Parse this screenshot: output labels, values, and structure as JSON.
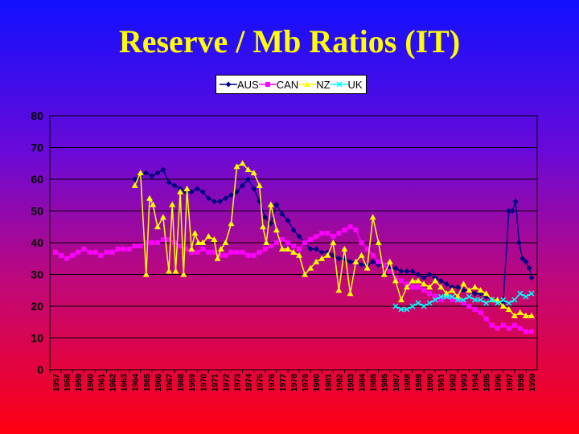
{
  "title": "Reserve / Mb Ratios (IT)",
  "chart_data": {
    "type": "line",
    "title": "Reserve / Mb Ratios (IT)",
    "xlabel": "",
    "ylabel": "",
    "ylim": [
      0,
      80
    ],
    "yticks": [
      "0",
      "10",
      "20",
      "30",
      "40",
      "50",
      "60",
      "70",
      "80"
    ],
    "grid": true,
    "legend_position": "top",
    "xlim": [
      1957,
      1999
    ],
    "xticks": [
      "1957",
      "1958",
      "1959",
      "1960",
      "1961",
      "1962",
      "1963",
      "1964",
      "1965",
      "1966",
      "1967",
      "1968",
      "1969",
      "1970",
      "1971",
      "1972",
      "1973",
      "1974",
      "1975",
      "1976",
      "1977",
      "1978",
      "1979",
      "1980",
      "1981",
      "1982",
      "1983",
      "1984",
      "1985",
      "1986",
      "1987",
      "1988",
      "1989",
      "1990",
      "1991",
      "1992",
      "1993",
      "1994",
      "1995",
      "1996",
      "1997",
      "1998",
      "1999"
    ],
    "series": [
      {
        "name": "AUS",
        "color": "#000080",
        "marker": "diamond",
        "x": [
          1964.0,
          1964.5,
          1965.0,
          1965.5,
          1966.0,
          1966.5,
          1967.0,
          1967.5,
          1968.0,
          1968.5,
          1969.0,
          1969.5,
          1970.0,
          1970.5,
          1971.0,
          1971.5,
          1972.0,
          1972.5,
          1973.0,
          1973.5,
          1974.0,
          1974.5,
          1975.0,
          1975.5,
          1976.0,
          1976.5,
          1977.0,
          1977.5,
          1978.0,
          1978.5,
          1979.0,
          1979.5,
          1980.0,
          1980.5,
          1981.0,
          1981.5,
          1982.0,
          1982.5,
          1983.0,
          1983.5,
          1984.0,
          1984.5,
          1985.0,
          1985.5,
          1986.0,
          1986.5,
          1987.0,
          1987.5,
          1988.0,
          1988.5,
          1989.0,
          1989.5,
          1990.0,
          1990.5,
          1991.0,
          1991.5,
          1992.0,
          1992.5,
          1993.0,
          1993.5,
          1994.0,
          1994.5,
          1995.0,
          1995.5,
          1996.0,
          1996.5,
          1997.0,
          1997.3,
          1997.6,
          1997.9,
          1998.2,
          1998.5,
          1998.8,
          1999.0
        ],
        "y": [
          60,
          61,
          62,
          61,
          62,
          63,
          59,
          58,
          57,
          56,
          56,
          57,
          56,
          54,
          53,
          53,
          54,
          55,
          56,
          58,
          60,
          57,
          53,
          48,
          46,
          52,
          49,
          47,
          44,
          42,
          40,
          38,
          38,
          37,
          37,
          36,
          35,
          35,
          34,
          34,
          33,
          33,
          34,
          33,
          33,
          32,
          32,
          31,
          31,
          31,
          30,
          29,
          30,
          29,
          28,
          27,
          26,
          26,
          25,
          25,
          24,
          24,
          23,
          22,
          22,
          21,
          50,
          50,
          53,
          40,
          35,
          34,
          32,
          29
        ]
      },
      {
        "name": "CAN",
        "color": "#ff00ff",
        "marker": "square",
        "x": [
          1957.0,
          1957.5,
          1958.0,
          1958.5,
          1959.0,
          1959.5,
          1960.0,
          1960.5,
          1961.0,
          1961.5,
          1962.0,
          1962.5,
          1963.0,
          1963.5,
          1964.0,
          1964.5,
          1965.0,
          1965.5,
          1966.0,
          1966.5,
          1967.0,
          1967.5,
          1968.0,
          1968.5,
          1969.0,
          1969.5,
          1970.0,
          1970.5,
          1971.0,
          1971.5,
          1972.0,
          1972.5,
          1973.0,
          1973.5,
          1974.0,
          1974.5,
          1975.0,
          1975.5,
          1976.0,
          1976.5,
          1977.0,
          1977.5,
          1978.0,
          1978.5,
          1979.0,
          1979.5,
          1980.0,
          1980.5,
          1981.0,
          1981.5,
          1982.0,
          1982.5,
          1983.0,
          1983.5,
          1984.0,
          1984.5,
          1985.0,
          1985.5,
          1986.0,
          1986.5,
          1987.0,
          1987.5,
          1988.0,
          1988.5,
          1989.0,
          1989.5,
          1990.0,
          1990.5,
          1991.0,
          1991.5,
          1992.0,
          1992.5,
          1993.0,
          1993.5,
          1994.0,
          1994.5,
          1995.0,
          1995.5,
          1996.0,
          1996.5,
          1997.0,
          1997.5,
          1998.0,
          1998.5,
          1999.0
        ],
        "y": [
          37,
          36,
          35,
          36,
          37,
          38,
          37,
          37,
          36,
          37,
          37,
          38,
          38,
          38,
          39,
          39,
          40,
          40,
          40,
          41,
          41,
          40,
          39,
          38,
          37,
          37,
          38,
          37,
          37,
          36,
          36,
          37,
          37,
          37,
          36,
          36,
          37,
          38,
          39,
          40,
          41,
          40,
          39,
          38,
          40,
          41,
          42,
          43,
          43,
          42,
          43,
          44,
          45,
          44,
          40,
          38,
          36,
          34,
          33,
          31,
          29,
          28,
          27,
          26,
          26,
          25,
          24,
          23,
          22,
          23,
          22,
          22,
          21,
          20,
          19,
          18,
          16,
          14,
          13,
          14,
          13,
          14,
          13,
          12,
          12
        ]
      },
      {
        "name": "NZ",
        "color": "#ffff00",
        "marker": "triangle",
        "x": [
          1964.0,
          1964.5,
          1965.0,
          1965.3,
          1965.6,
          1966.0,
          1966.5,
          1967.0,
          1967.3,
          1967.6,
          1968.0,
          1968.3,
          1968.6,
          1969.0,
          1969.3,
          1969.6,
          1970.0,
          1970.5,
          1971.0,
          1971.3,
          1971.6,
          1972.0,
          1972.5,
          1973.0,
          1973.5,
          1974.0,
          1974.5,
          1975.0,
          1975.3,
          1975.6,
          1976.0,
          1976.5,
          1977.0,
          1977.5,
          1978.0,
          1978.5,
          1979.0,
          1979.5,
          1980.0,
          1980.5,
          1981.0,
          1981.5,
          1982.0,
          1982.5,
          1983.0,
          1983.5,
          1984.0,
          1984.5,
          1985.0,
          1985.5,
          1986.0,
          1986.5,
          1987.0,
          1987.5,
          1988.0,
          1988.5,
          1989.0,
          1989.5,
          1990.0,
          1990.5,
          1991.0,
          1991.5,
          1992.0,
          1992.5,
          1993.0,
          1993.5,
          1994.0,
          1994.5,
          1995.0,
          1995.5,
          1996.0,
          1996.5,
          1997.0,
          1997.5,
          1998.0,
          1998.5,
          1999.0
        ],
        "y": [
          58,
          62,
          30,
          54,
          52,
          45,
          48,
          31,
          52,
          31,
          56,
          30,
          57,
          38,
          43,
          40,
          40,
          42,
          41,
          35,
          38,
          40,
          46,
          64,
          65,
          63,
          62,
          58,
          45,
          40,
          52,
          44,
          38,
          38,
          37,
          36,
          30,
          32,
          34,
          35,
          36,
          40,
          25,
          38,
          24,
          34,
          36,
          32,
          48,
          40,
          30,
          34,
          28,
          22,
          26,
          28,
          28,
          27,
          26,
          28,
          26,
          24,
          25,
          23,
          27,
          25,
          26,
          25,
          24,
          22,
          22,
          20,
          19,
          17,
          18,
          17,
          17
        ]
      },
      {
        "name": "UK",
        "color": "#00ffff",
        "marker": "cross",
        "x": [
          1987.0,
          1987.5,
          1988.0,
          1988.5,
          1989.0,
          1989.5,
          1990.0,
          1990.5,
          1991.0,
          1991.5,
          1992.0,
          1992.5,
          1993.0,
          1993.5,
          1994.0,
          1994.5,
          1995.0,
          1995.5,
          1996.0,
          1996.5,
          1997.0,
          1997.5,
          1998.0,
          1998.5,
          1999.0
        ],
        "y": [
          20,
          19,
          19,
          20,
          21,
          20,
          21,
          22,
          23,
          23,
          23,
          22,
          22,
          23,
          22,
          22,
          21,
          22,
          21,
          22,
          21,
          22,
          24,
          23,
          24
        ]
      }
    ]
  }
}
